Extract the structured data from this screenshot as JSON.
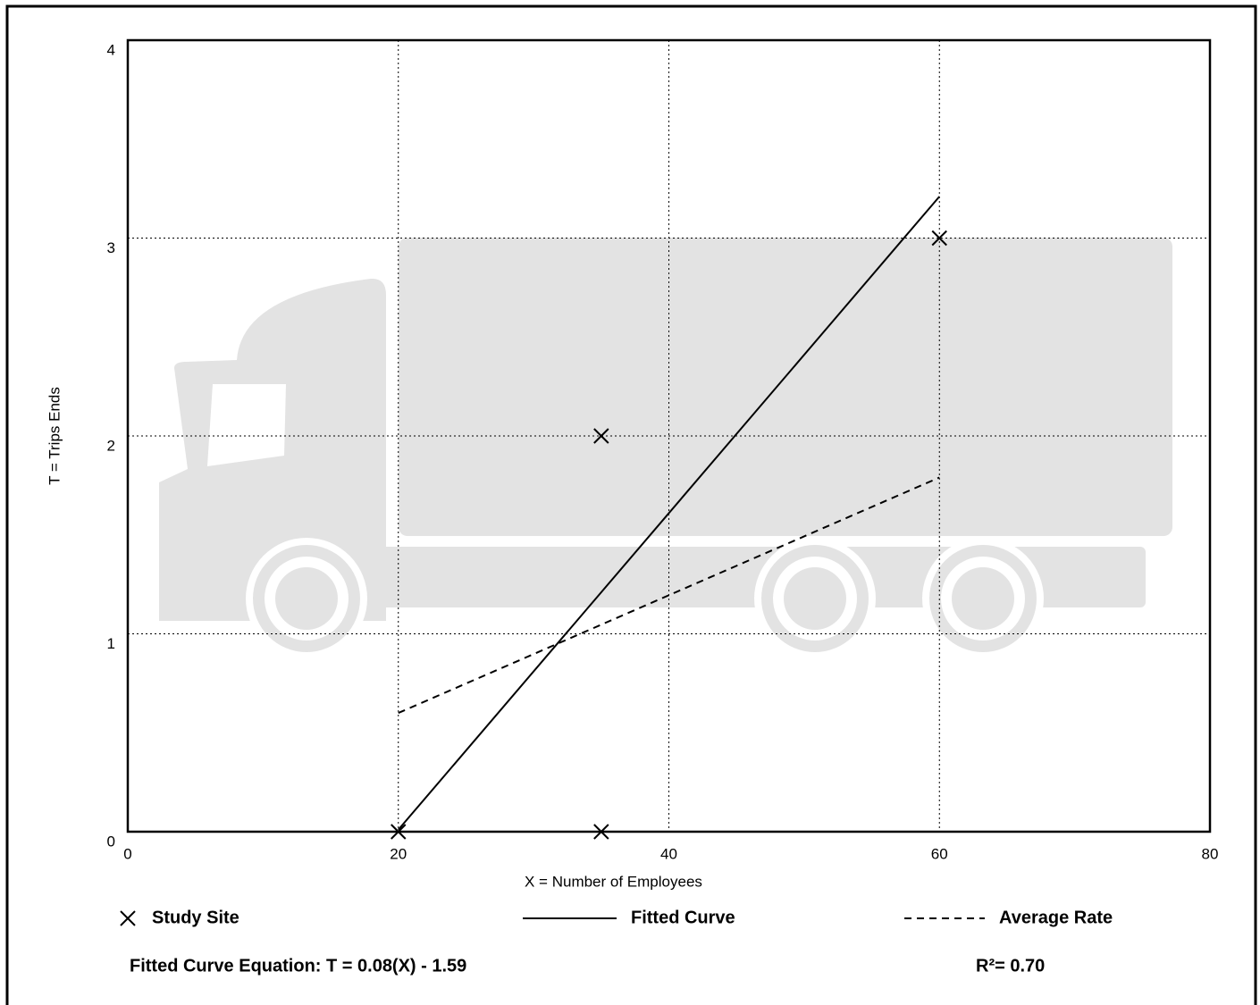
{
  "chart_data": {
    "type": "scatter",
    "xlabel": "X = Number of Employees",
    "ylabel": "T = Trips Ends",
    "xlim": [
      0,
      80
    ],
    "ylim": [
      0,
      4
    ],
    "xticks": [
      0,
      20,
      40,
      60,
      80
    ],
    "yticks": [
      0,
      1,
      2,
      3,
      4
    ],
    "grid": true,
    "series": [
      {
        "name": "Study Site",
        "color": "#000000",
        "marker": "x",
        "x": [
          20,
          35,
          35,
          60
        ],
        "values": [
          0,
          0,
          2,
          3
        ]
      },
      {
        "name": "Fitted Curve",
        "color": "#000000",
        "line": "solid",
        "x": [
          20,
          60
        ],
        "values": [
          0.01,
          3.21
        ]
      },
      {
        "name": "Average Rate",
        "color": "#000000",
        "line": "dashed",
        "x": [
          20,
          60
        ],
        "values": [
          0.6,
          1.79
        ]
      }
    ],
    "annotations": [
      "Fitted Curve Equation: T = 0.08(X) - 1.59",
      "R²= 0.70"
    ]
  }
}
